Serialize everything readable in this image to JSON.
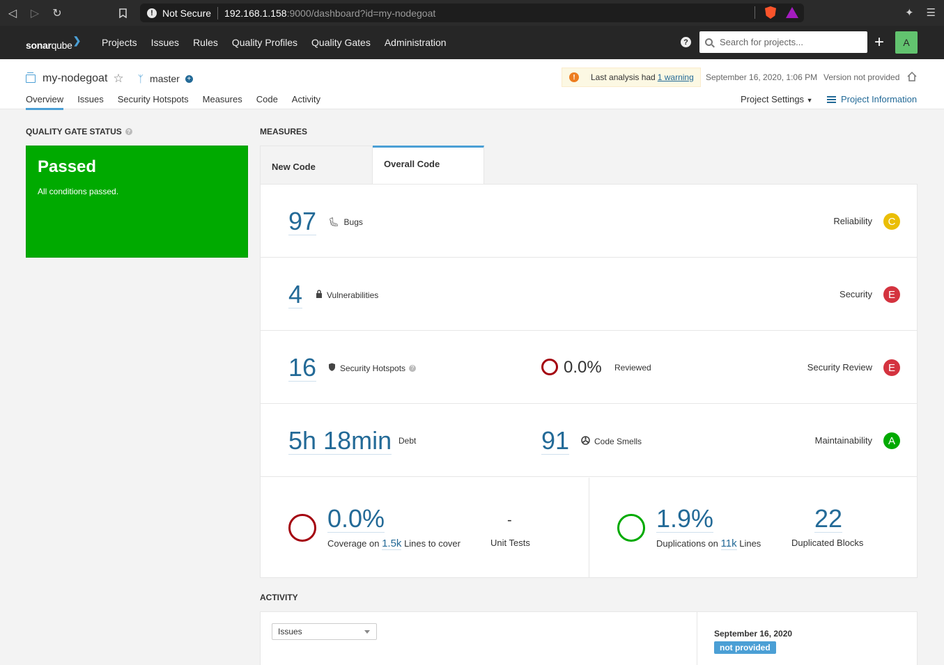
{
  "browser": {
    "security": "Not Secure",
    "url_host": "192.168.1.158",
    "url_rest": ":9000/dashboard?id=my-nodegoat"
  },
  "topnav": {
    "logo_sonar": "sonar",
    "logo_qube": "qube",
    "items": [
      "Projects",
      "Issues",
      "Rules",
      "Quality Profiles",
      "Quality Gates",
      "Administration"
    ],
    "search_placeholder": "Search for projects...",
    "avatar_letter": "A"
  },
  "project": {
    "name": "my-nodegoat",
    "branch": "master",
    "warning_prefix": "Last analysis had",
    "warning_link": "1 warning",
    "analysis_date": "September 16, 2020, 1:06 PM",
    "version": "Version not provided",
    "tabs": [
      "Overview",
      "Issues",
      "Security Hotspots",
      "Measures",
      "Code",
      "Activity"
    ],
    "settings": "Project Settings",
    "info": "Project Information"
  },
  "quality_gate": {
    "title": "QUALITY GATE STATUS",
    "status": "Passed",
    "message": "All conditions passed."
  },
  "measures": {
    "title": "MEASURES",
    "tab_new": "New Code",
    "tab_overall": "Overall Code",
    "bugs": {
      "value": "97",
      "label": "Bugs",
      "rating_label": "Reliability",
      "rating": "C"
    },
    "vulnerabilities": {
      "value": "4",
      "label": "Vulnerabilities",
      "rating_label": "Security",
      "rating": "E"
    },
    "hotspots": {
      "value": "16",
      "label": "Security Hotspots",
      "reviewed_value": "0.0%",
      "reviewed_label": "Reviewed",
      "rating_label": "Security Review",
      "rating": "E"
    },
    "debt": {
      "value": "5h 18min",
      "label": "Debt",
      "smells_value": "91",
      "smells_label": "Code Smells",
      "rating_label": "Maintainability",
      "rating": "A"
    },
    "coverage": {
      "value": "0.0%",
      "prefix": "Coverage on",
      "lines": "1.5k",
      "suffix": "Lines to cover",
      "unit_tests_value": "-",
      "unit_tests_label": "Unit Tests"
    },
    "duplications": {
      "value": "1.9%",
      "prefix": "Duplications on",
      "lines": "11k",
      "suffix": "Lines",
      "blocks_value": "22",
      "blocks_label": "Duplicated Blocks"
    }
  },
  "activity": {
    "title": "ACTIVITY",
    "select_value": "Issues",
    "date": "September 16, 2020",
    "badge": "not provided"
  },
  "colors": {
    "passed": "#00aa00",
    "rating_a": "#00aa00",
    "rating_c": "#eabe06",
    "rating_e": "#d4333f",
    "link": "#236a97"
  }
}
